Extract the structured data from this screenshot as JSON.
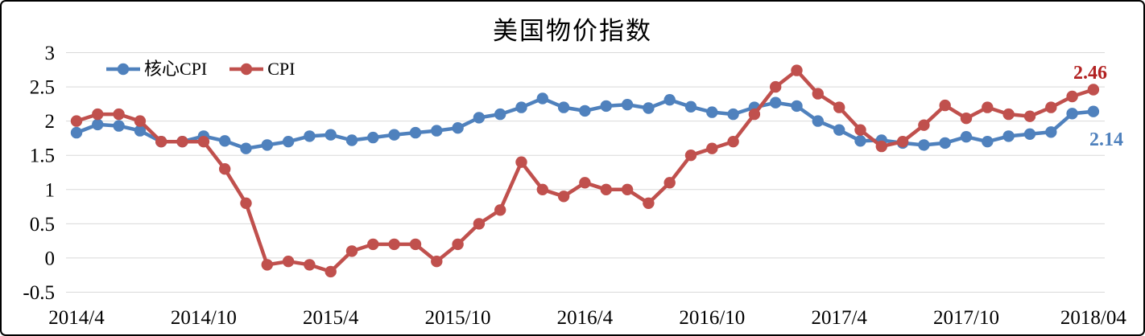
{
  "chart_data": {
    "type": "line",
    "title": "美国物价指数",
    "xlabel": "",
    "ylabel": "",
    "ylim": [
      -0.5,
      3
    ],
    "grid": true,
    "grid_color": "#D9D9D9",
    "tick_color": "#000000",
    "legend_position": "top-left-inside",
    "categories": [
      "2014/4",
      "2014/5",
      "2014/6",
      "2014/7",
      "2014/8",
      "2014/9",
      "2014/10",
      "2014/11",
      "2014/12",
      "2015/1",
      "2015/2",
      "2015/3",
      "2015/4",
      "2015/5",
      "2015/6",
      "2015/7",
      "2015/8",
      "2015/9",
      "2015/10",
      "2015/11",
      "2015/12",
      "2016/1",
      "2016/2",
      "2016/3",
      "2016/4",
      "2016/5",
      "2016/6",
      "2016/7",
      "2016/8",
      "2016/9",
      "2016/10",
      "2016/11",
      "2016/12",
      "2017/1",
      "2017/2",
      "2017/3",
      "2017/4",
      "2017/5",
      "2017/6",
      "2017/7",
      "2017/8",
      "2017/9",
      "2017/10",
      "2017/11",
      "2017/12",
      "2018/1",
      "2018/2",
      "2018/3",
      "2018/4"
    ],
    "series": [
      {
        "name": "核心CPI",
        "color": "#4F81BD",
        "values": [
          1.83,
          1.95,
          1.93,
          1.86,
          1.7,
          1.7,
          1.78,
          1.71,
          1.6,
          1.65,
          1.7,
          1.78,
          1.8,
          1.72,
          1.76,
          1.8,
          1.83,
          1.86,
          1.9,
          2.05,
          2.1,
          2.2,
          2.33,
          2.2,
          2.15,
          2.22,
          2.24,
          2.19,
          2.31,
          2.21,
          2.13,
          2.1,
          2.2,
          2.27,
          2.22,
          2.0,
          1.87,
          1.71,
          1.72,
          1.68,
          1.65,
          1.68,
          1.77,
          1.7,
          1.78,
          1.81,
          1.84,
          2.11,
          2.14
        ]
      },
      {
        "name": "CPI",
        "color": "#C0504D",
        "values": [
          2.0,
          2.1,
          2.1,
          2.0,
          1.7,
          1.7,
          1.7,
          1.3,
          0.8,
          -0.1,
          -0.05,
          -0.1,
          -0.2,
          0.1,
          0.2,
          0.2,
          0.2,
          -0.05,
          0.2,
          0.5,
          0.7,
          1.4,
          1.0,
          0.9,
          1.1,
          1.0,
          1.0,
          0.8,
          1.1,
          1.5,
          1.6,
          1.7,
          2.1,
          2.5,
          2.74,
          2.4,
          2.2,
          1.87,
          1.63,
          1.7,
          1.94,
          2.23,
          2.04,
          2.2,
          2.1,
          2.07,
          2.2,
          2.36,
          2.46
        ]
      }
    ],
    "yticks": [
      {
        "label": "3",
        "value": 3
      },
      {
        "label": "2.5",
        "value": 2.5
      },
      {
        "label": "2",
        "value": 2
      },
      {
        "label": "1.5",
        "value": 1.5
      },
      {
        "label": "1",
        "value": 1
      },
      {
        "label": "0.5",
        "value": 0.5
      },
      {
        "label": "0",
        "value": 0
      },
      {
        "label": "-0.5",
        "value": -0.5
      }
    ],
    "xticks": [
      {
        "label": "2014/4",
        "index": 0
      },
      {
        "label": "2014/10",
        "index": 6
      },
      {
        "label": "2015/4",
        "index": 12
      },
      {
        "label": "2015/10",
        "index": 18
      },
      {
        "label": "2016/4",
        "index": 24
      },
      {
        "label": "2016/10",
        "index": 30
      },
      {
        "label": "2017/4",
        "index": 36
      },
      {
        "label": "2017/10",
        "index": 42
      },
      {
        "label": "2018/04",
        "index": 48
      }
    ],
    "end_labels": [
      {
        "text": "2.46",
        "series": "CPI",
        "color": "#B22222"
      },
      {
        "text": "2.14",
        "series": "核心CPI",
        "color": "#4F81BD"
      }
    ]
  }
}
